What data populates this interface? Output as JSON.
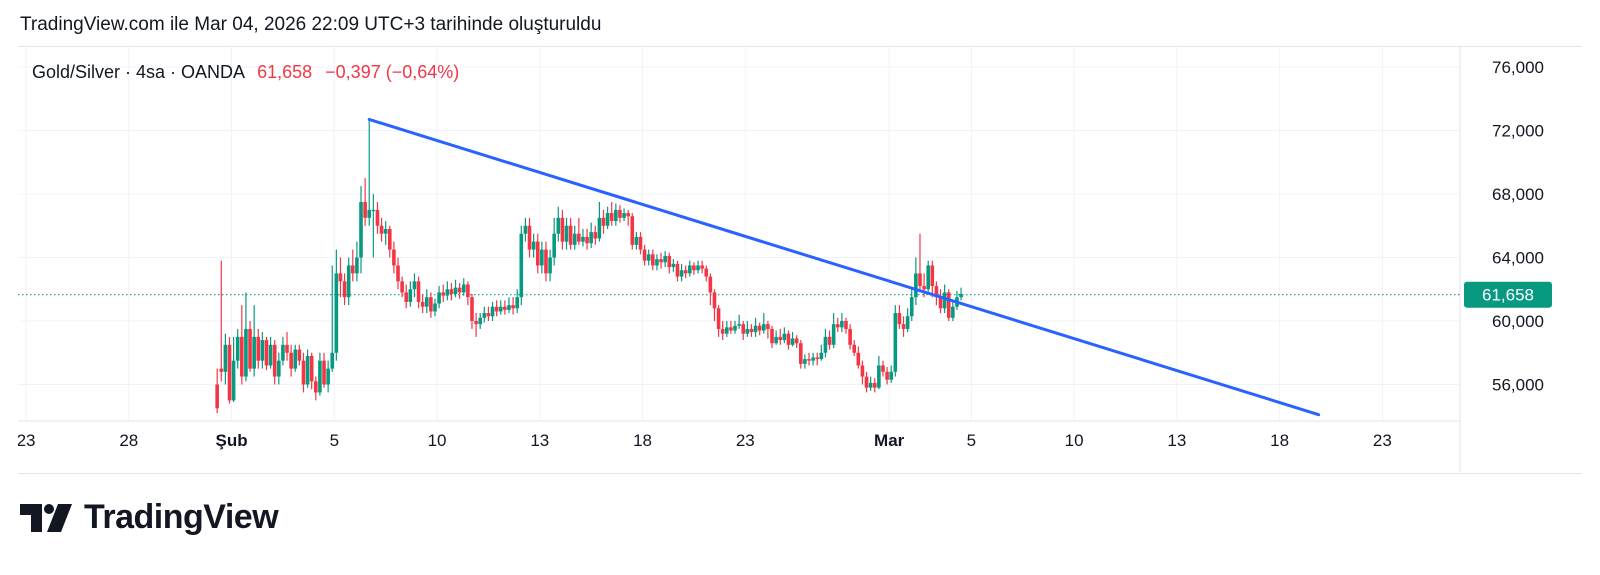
{
  "caption": "TradingView.com ile Mar 04, 2026 22:09 UTC+3 tarihinde oluşturuldu",
  "legend": {
    "symbol": "Gold/Silver · 4sa · OANDA",
    "last": "61,658",
    "change": "−0,397 (−0,64%)"
  },
  "brand": "TradingView",
  "colors": {
    "up": "#089981",
    "down": "#f23645",
    "trendline": "#2962ff",
    "price_line": "#089981"
  },
  "chart_data": {
    "type": "candlestick",
    "ylim": [
      53700,
      77200
    ],
    "y_ticks": [
      {
        "value": 56000,
        "label": "56,000"
      },
      {
        "value": 60000,
        "label": "60,000"
      },
      {
        "value": 64000,
        "label": "64,000"
      },
      {
        "value": 68000,
        "label": "68,000"
      },
      {
        "value": 72000,
        "label": "72,000"
      },
      {
        "value": 76000,
        "label": "76,000"
      }
    ],
    "x_ticks": [
      {
        "day": -8,
        "label": "23",
        "bold": false
      },
      {
        "day": -3,
        "label": "28",
        "bold": false
      },
      {
        "day": 2,
        "label": "Şub",
        "bold": true
      },
      {
        "day": 7,
        "label": "5",
        "bold": false
      },
      {
        "day": 12,
        "label": "10",
        "bold": false
      },
      {
        "day": 17,
        "label": "13",
        "bold": false
      },
      {
        "day": 22,
        "label": "18",
        "bold": false
      },
      {
        "day": 27,
        "label": "23",
        "bold": false
      },
      {
        "day": 34,
        "label": "Mar",
        "bold": true
      },
      {
        "day": 38,
        "label": "5",
        "bold": false
      },
      {
        "day": 43,
        "label": "10",
        "bold": false
      },
      {
        "day": 48,
        "label": "13",
        "bold": false
      },
      {
        "day": 53,
        "label": "18",
        "bold": false
      },
      {
        "day": 58,
        "label": "23",
        "bold": false
      }
    ],
    "last_price": {
      "value": 61658,
      "label": "61,658"
    },
    "trendline": [
      {
        "day": 8.7,
        "value": 72700
      },
      {
        "day": 54.9,
        "value": 54100
      }
    ],
    "candles": [
      [
        1.3,
        56000,
        54500,
        57000,
        54200
      ],
      [
        1.5,
        57000,
        56800,
        63800,
        56200
      ],
      [
        1.7,
        56800,
        58500,
        59200,
        56000
      ],
      [
        1.9,
        58500,
        55000,
        59000,
        54800
      ],
      [
        2.1,
        55000,
        57500,
        59000,
        54900
      ],
      [
        2.3,
        57500,
        59000,
        59500,
        57000
      ],
      [
        2.5,
        59000,
        56500,
        61000,
        56000
      ],
      [
        2.7,
        56500,
        59500,
        61800,
        56200
      ],
      [
        2.9,
        59500,
        57000,
        60000,
        56800
      ],
      [
        3.1,
        57000,
        59000,
        61000,
        56500
      ],
      [
        3.3,
        59000,
        57500,
        59500,
        57000
      ],
      [
        3.5,
        57500,
        58800,
        59300,
        57000
      ],
      [
        3.7,
        58800,
        57200,
        59000,
        56900
      ],
      [
        3.9,
        57200,
        58500,
        59000,
        57000
      ],
      [
        4.1,
        58500,
        56500,
        58800,
        56000
      ],
      [
        4.3,
        56500,
        57500,
        58000,
        56000
      ],
      [
        4.5,
        57500,
        58500,
        59000,
        57200
      ],
      [
        4.7,
        58500,
        58000,
        59300,
        57500
      ],
      [
        4.9,
        58000,
        57000,
        58500,
        56500
      ],
      [
        5.1,
        57000,
        58200,
        58500,
        56800
      ],
      [
        5.3,
        58200,
        57500,
        58500,
        57200
      ],
      [
        5.5,
        57500,
        56000,
        58000,
        55500
      ],
      [
        5.7,
        56000,
        57800,
        58200,
        55800
      ],
      [
        5.9,
        57800,
        56200,
        58000,
        55700
      ],
      [
        6.1,
        56200,
        55500,
        56500,
        55000
      ],
      [
        6.3,
        55500,
        57500,
        58000,
        55300
      ],
      [
        6.5,
        57500,
        56000,
        58000,
        55800
      ],
      [
        6.7,
        56000,
        57000,
        57500,
        55500
      ],
      [
        6.9,
        57000,
        58000,
        63500,
        56800
      ],
      [
        7.1,
        58000,
        63000,
        64500,
        57500
      ],
      [
        7.3,
        63000,
        62500,
        64000,
        61500
      ],
      [
        7.5,
        62500,
        61500,
        63000,
        61000
      ],
      [
        7.7,
        61500,
        63500,
        64000,
        61000
      ],
      [
        7.9,
        63500,
        63000,
        64500,
        62500
      ],
      [
        8.1,
        63000,
        64000,
        65000,
        62500
      ],
      [
        8.3,
        64000,
        67500,
        68500,
        63000
      ],
      [
        8.5,
        67500,
        66500,
        69000,
        66000
      ],
      [
        8.7,
        66500,
        67000,
        72700,
        66000
      ],
      [
        8.9,
        67000,
        67000,
        68000,
        64000
      ],
      [
        9.1,
        67000,
        66000,
        67500,
        65500
      ],
      [
        9.3,
        66000,
        65500,
        66500,
        65000
      ],
      [
        9.5,
        65500,
        65800,
        66300,
        64800
      ],
      [
        9.7,
        65800,
        64500,
        66000,
        64000
      ],
      [
        9.9,
        64500,
        63500,
        65000,
        63000
      ],
      [
        10.1,
        63500,
        62500,
        64000,
        62000
      ],
      [
        10.3,
        62500,
        61800,
        62800,
        61500
      ],
      [
        10.5,
        61800,
        61200,
        62300,
        60800
      ],
      [
        10.7,
        61200,
        62000,
        62500,
        60900
      ],
      [
        10.9,
        62000,
        62500,
        63000,
        61500
      ],
      [
        11.1,
        62500,
        61200,
        62800,
        60800
      ],
      [
        11.3,
        61200,
        60900,
        61700,
        60500
      ],
      [
        11.5,
        60900,
        61500,
        62000,
        60500
      ],
      [
        11.7,
        61500,
        60600,
        61800,
        60200
      ],
      [
        11.9,
        60600,
        61100,
        61400,
        60300
      ],
      [
        12.1,
        61100,
        61800,
        62200,
        60800
      ],
      [
        12.3,
        61800,
        61600,
        62300,
        61200
      ],
      [
        12.5,
        61600,
        62000,
        62500,
        61300
      ],
      [
        12.7,
        62000,
        61700,
        62400,
        61300
      ],
      [
        12.9,
        61700,
        62100,
        62600,
        61500
      ],
      [
        13.1,
        62100,
        61800,
        62400,
        61400
      ],
      [
        13.3,
        61800,
        62300,
        62700,
        61600
      ],
      [
        13.5,
        62300,
        61500,
        62500,
        61000
      ],
      [
        13.7,
        61500,
        60000,
        61700,
        59500
      ],
      [
        13.9,
        60000,
        59800,
        60500,
        59000
      ],
      [
        14.1,
        59800,
        60200,
        60500,
        59500
      ],
      [
        14.3,
        60200,
        60500,
        60900,
        59900
      ],
      [
        14.5,
        60500,
        60300,
        60900,
        60000
      ],
      [
        14.7,
        60300,
        60900,
        61200,
        60000
      ],
      [
        14.9,
        60900,
        60600,
        61300,
        60300
      ],
      [
        15.1,
        60600,
        60900,
        61300,
        60400
      ],
      [
        15.3,
        60900,
        60700,
        61300,
        60400
      ],
      [
        15.5,
        60700,
        61000,
        61500,
        60500
      ],
      [
        15.7,
        61000,
        60800,
        61500,
        60400
      ],
      [
        15.9,
        60800,
        61500,
        62000,
        60500
      ],
      [
        16.1,
        61500,
        65500,
        66000,
        61000
      ],
      [
        16.3,
        65500,
        66000,
        66500,
        65000
      ],
      [
        16.5,
        66000,
        64500,
        66500,
        64000
      ],
      [
        16.7,
        64500,
        65000,
        65500,
        64000
      ],
      [
        16.9,
        65000,
        63500,
        65500,
        63000
      ],
      [
        17.1,
        63500,
        64500,
        65000,
        63000
      ],
      [
        17.3,
        64500,
        63000,
        65000,
        62500
      ],
      [
        17.5,
        63000,
        64000,
        64500,
        62500
      ],
      [
        17.7,
        64000,
        65500,
        66500,
        63500
      ],
      [
        17.9,
        65500,
        66500,
        67200,
        65000
      ],
      [
        18.1,
        66500,
        65000,
        67000,
        64500
      ],
      [
        18.3,
        65000,
        66000,
        66500,
        64500
      ],
      [
        18.5,
        66000,
        64800,
        66500,
        64500
      ],
      [
        18.7,
        64800,
        65500,
        66000,
        64500
      ],
      [
        18.9,
        65500,
        65000,
        66500,
        64800
      ],
      [
        19.1,
        65000,
        65300,
        65800,
        64700
      ],
      [
        19.3,
        65300,
        64900,
        65800,
        64500
      ],
      [
        19.5,
        64900,
        65600,
        66200,
        64600
      ],
      [
        19.7,
        65600,
        65200,
        66000,
        64800
      ],
      [
        19.9,
        65200,
        66500,
        67500,
        65000
      ],
      [
        20.1,
        66500,
        66000,
        67000,
        65500
      ],
      [
        20.3,
        66000,
        66800,
        67200,
        65800
      ],
      [
        20.5,
        66800,
        66300,
        67500,
        66000
      ],
      [
        20.7,
        66300,
        67000,
        67400,
        66000
      ],
      [
        20.9,
        67000,
        66500,
        67300,
        66200
      ],
      [
        21.1,
        66500,
        66800,
        67100,
        66300
      ],
      [
        21.3,
        66800,
        66600,
        67000,
        66000
      ],
      [
        21.5,
        66600,
        64800,
        66800,
        64500
      ],
      [
        21.7,
        64800,
        65300,
        65600,
        64500
      ],
      [
        21.9,
        65300,
        64500,
        65600,
        64200
      ],
      [
        22.1,
        64500,
        63800,
        64800,
        63500
      ],
      [
        22.3,
        63800,
        64200,
        64500,
        63500
      ],
      [
        22.5,
        64200,
        63500,
        64500,
        63200
      ],
      [
        22.7,
        63500,
        63900,
        64200,
        63200
      ],
      [
        22.9,
        63900,
        63700,
        64300,
        63300
      ],
      [
        23.1,
        63700,
        64100,
        64400,
        63400
      ],
      [
        23.3,
        64100,
        63400,
        64300,
        63000
      ],
      [
        23.5,
        63400,
        63600,
        63900,
        63100
      ],
      [
        23.7,
        63600,
        62800,
        63800,
        62500
      ],
      [
        23.9,
        62800,
        63200,
        63600,
        62500
      ],
      [
        24.1,
        63200,
        63000,
        63500,
        62700
      ],
      [
        24.3,
        63000,
        63500,
        63800,
        62800
      ],
      [
        24.5,
        63500,
        63200,
        63700,
        62900
      ],
      [
        24.7,
        63200,
        63500,
        63800,
        63000
      ],
      [
        24.9,
        63500,
        63300,
        63800,
        63000
      ],
      [
        25.1,
        63300,
        62800,
        63500,
        62500
      ],
      [
        25.3,
        62800,
        61800,
        63000,
        61000
      ],
      [
        25.5,
        61800,
        60800,
        62000,
        60000
      ],
      [
        25.7,
        60800,
        59500,
        61000,
        59000
      ],
      [
        25.9,
        59500,
        59200,
        60000,
        58800
      ],
      [
        26.1,
        59200,
        59600,
        60000,
        59000
      ],
      [
        26.3,
        59600,
        59400,
        60000,
        59200
      ],
      [
        26.5,
        59400,
        59700,
        60000,
        59200
      ],
      [
        26.7,
        59700,
        59800,
        60400,
        59500
      ],
      [
        26.9,
        59800,
        59200,
        60000,
        58800
      ],
      [
        27.1,
        59200,
        59500,
        60000,
        59000
      ],
      [
        27.3,
        59500,
        59300,
        59800,
        59000
      ],
      [
        27.5,
        59300,
        59700,
        60200,
        59000
      ],
      [
        27.7,
        59700,
        59400,
        59900,
        59100
      ],
      [
        27.9,
        59400,
        59800,
        60500,
        59200
      ],
      [
        28.1,
        59800,
        59500,
        60000,
        58900
      ],
      [
        28.3,
        59500,
        58600,
        59700,
        58300
      ],
      [
        28.5,
        58600,
        59000,
        59400,
        58500
      ],
      [
        28.7,
        59000,
        58800,
        59500,
        58500
      ],
      [
        28.9,
        58800,
        59200,
        59600,
        58600
      ],
      [
        29.1,
        59200,
        58500,
        59400,
        58200
      ],
      [
        29.3,
        58500,
        58900,
        59300,
        58400
      ],
      [
        29.5,
        58900,
        58600,
        59100,
        58300
      ],
      [
        29.7,
        58600,
        57300,
        58800,
        57000
      ],
      [
        29.9,
        57300,
        57600,
        57900,
        57000
      ],
      [
        30.1,
        57600,
        57500,
        58000,
        57200
      ],
      [
        30.3,
        57500,
        57700,
        58000,
        57200
      ],
      [
        30.5,
        57700,
        57600,
        58000,
        57200
      ],
      [
        30.7,
        57600,
        58000,
        58500,
        57500
      ],
      [
        30.9,
        58000,
        59000,
        59500,
        57700
      ],
      [
        31.1,
        59000,
        58500,
        59400,
        58200
      ],
      [
        31.3,
        58500,
        59800,
        60500,
        58300
      ],
      [
        31.5,
        59800,
        59600,
        60200,
        59300
      ],
      [
        31.7,
        59600,
        60000,
        60500,
        59300
      ],
      [
        31.9,
        60000,
        59500,
        60200,
        59200
      ],
      [
        32.1,
        59500,
        58500,
        59800,
        58200
      ],
      [
        32.3,
        58500,
        58000,
        58800,
        57800
      ],
      [
        32.5,
        58000,
        57200,
        58400,
        57000
      ],
      [
        32.7,
        57200,
        56500,
        57500,
        56000
      ],
      [
        32.9,
        56500,
        55800,
        56800,
        55500
      ],
      [
        33.1,
        55800,
        56100,
        56500,
        55600
      ],
      [
        33.3,
        56100,
        55800,
        56400,
        55500
      ],
      [
        33.5,
        55800,
        57200,
        57800,
        55700
      ],
      [
        33.7,
        57200,
        56800,
        57500,
        56500
      ],
      [
        33.9,
        56800,
        56300,
        57100,
        56000
      ],
      [
        34.1,
        56300,
        56800,
        57200,
        56100
      ],
      [
        34.3,
        56800,
        60500,
        61000,
        56500
      ],
      [
        34.5,
        60500,
        59800,
        61000,
        59500
      ],
      [
        34.7,
        59800,
        59500,
        60300,
        59000
      ],
      [
        34.9,
        59500,
        60300,
        60800,
        59300
      ],
      [
        35.1,
        60300,
        61500,
        62000,
        60000
      ],
      [
        35.3,
        61500,
        63000,
        64000,
        61000
      ],
      [
        35.5,
        63000,
        62200,
        65500,
        61800
      ],
      [
        35.7,
        62200,
        62000,
        63000,
        61500
      ],
      [
        35.9,
        62000,
        63500,
        63800,
        61800
      ],
      [
        36.1,
        63500,
        62200,
        63800,
        61500
      ],
      [
        36.3,
        62200,
        61500,
        62500,
        61000
      ],
      [
        36.5,
        61500,
        60800,
        62000,
        60500
      ],
      [
        36.7,
        60800,
        61800,
        62300,
        60500
      ],
      [
        36.9,
        61800,
        60200,
        62000,
        60000
      ],
      [
        37.1,
        60200,
        60900,
        61300,
        60000
      ],
      [
        37.3,
        60900,
        61500,
        61900,
        60700
      ],
      [
        37.5,
        61500,
        61700,
        62100,
        61300
      ]
    ]
  }
}
